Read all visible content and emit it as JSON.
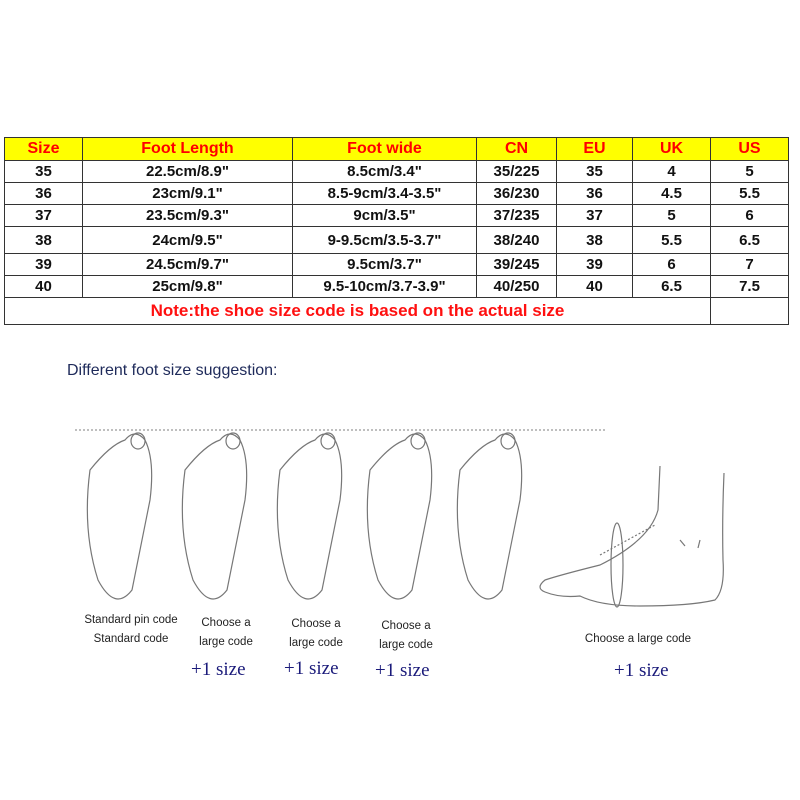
{
  "table": {
    "headers": [
      "Size",
      "Foot Length",
      "Foot wide",
      "CN",
      "EU",
      "UK",
      "US"
    ],
    "rows": [
      [
        "35",
        "22.5cm/8.9\"",
        "8.5cm/3.4\"",
        "35/225",
        "35",
        "4",
        "5"
      ],
      [
        "36",
        "23cm/9.1\"",
        "8.5-9cm/3.4-3.5\"",
        "36/230",
        "36",
        "4.5",
        "5.5"
      ],
      [
        "37",
        "23.5cm/9.3\"",
        "9cm/3.5\"",
        "37/235",
        "37",
        "5",
        "6"
      ],
      [
        "38",
        "24cm/9.5\"",
        "9-9.5cm/3.5-3.7\"",
        "38/240",
        "38",
        "5.5",
        "6.5"
      ],
      [
        "39",
        "24.5cm/9.7\"",
        "9.5cm/3.7\"",
        "39/245",
        "39",
        "6",
        "7"
      ],
      [
        "40",
        "25cm/9.8\"",
        "9.5-10cm/3.7-3.9\"",
        "40/250",
        "40",
        "6.5",
        "7.5"
      ]
    ],
    "note": "Note:the shoe size code is based on the actual size",
    "header_bg": "#ffff00",
    "header_color": "#ff0000",
    "note_color": "#ff0000"
  },
  "suggestion": {
    "title": "Different foot size suggestion:",
    "labels": [
      {
        "line1": "Standard pin code",
        "line2": "Standard code"
      },
      {
        "line1": "Choose a",
        "line2": "large code",
        "plus": "+1 size"
      },
      {
        "line1": "Choose a",
        "line2": "large code",
        "plus": "+1 size"
      },
      {
        "line1": "Choose a",
        "line2": "large code",
        "plus": "+1 size"
      },
      {
        "line1": "Choose a large code",
        "plus": "+1 size"
      }
    ]
  }
}
